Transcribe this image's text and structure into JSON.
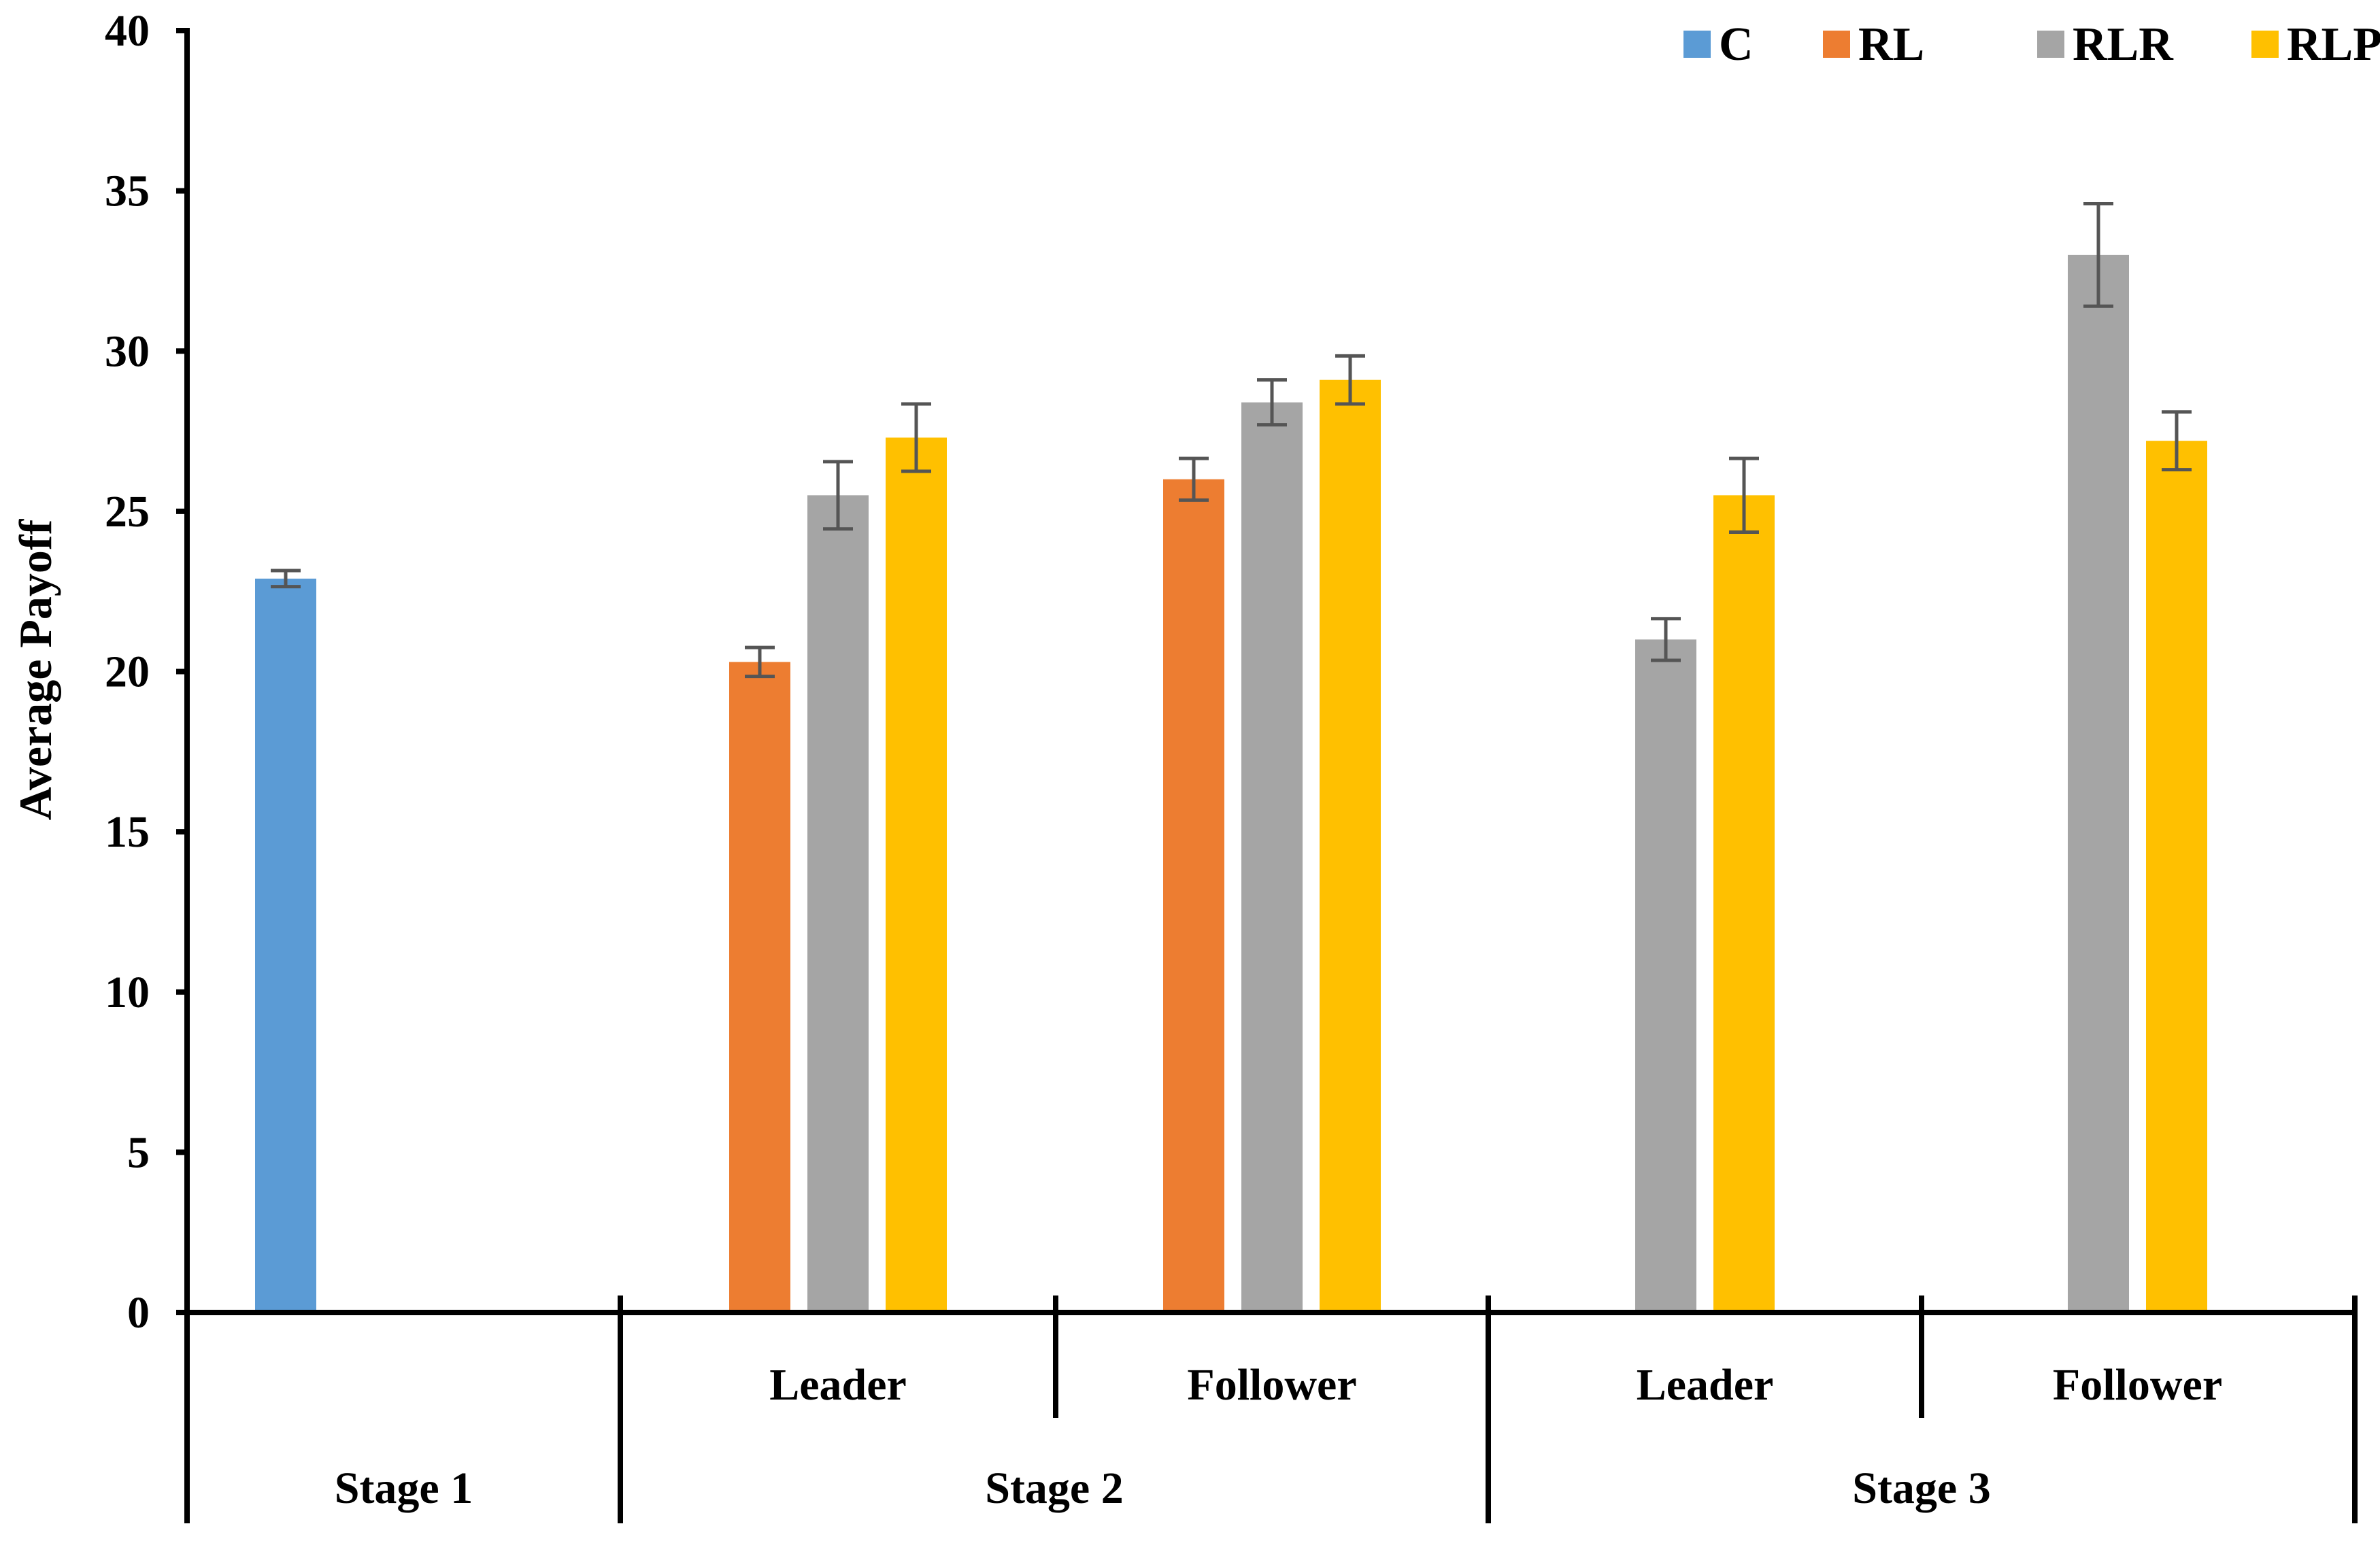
{
  "chart_data": {
    "type": "bar",
    "title": "",
    "ylabel": "Average Payoff",
    "xlabel": "",
    "ylim": [
      0,
      40
    ],
    "yticks": [
      0,
      5,
      10,
      15,
      20,
      25,
      30,
      35,
      40
    ],
    "grid": false,
    "legend_position": "top-right",
    "legend": [
      {
        "key": "C",
        "label": "C",
        "color": "#5B9BD5"
      },
      {
        "key": "RL",
        "label": "RL",
        "color": "#ED7D31"
      },
      {
        "key": "RLR",
        "label": "RLR",
        "color": "#A5A5A5"
      },
      {
        "key": "RLP",
        "label": "RLP",
        "color": "#FFC000"
      }
    ],
    "groups": [
      {
        "id": "g1",
        "label": "",
        "bars": [
          {
            "series": "C",
            "value": 22.9,
            "error": 0.25
          }
        ]
      },
      {
        "id": "g2",
        "label": "Leader",
        "bars": [
          {
            "series": "RL",
            "value": 20.3,
            "error": 0.45
          },
          {
            "series": "RLR",
            "value": 25.5,
            "error": 1.05
          },
          {
            "series": "RLP",
            "value": 27.3,
            "error": 1.05
          }
        ]
      },
      {
        "id": "g3",
        "label": "Follower",
        "bars": [
          {
            "series": "RL",
            "value": 26.0,
            "error": 0.65
          },
          {
            "series": "RLR",
            "value": 28.4,
            "error": 0.7
          },
          {
            "series": "RLP",
            "value": 29.1,
            "error": 0.75
          }
        ]
      },
      {
        "id": "g4",
        "label": "Leader",
        "bars": [
          {
            "series": "RLR",
            "value": 21.0,
            "error": 0.65
          },
          {
            "series": "RLP",
            "value": 25.5,
            "error": 1.15
          }
        ]
      },
      {
        "id": "g5",
        "label": "Follower",
        "bars": [
          {
            "series": "RLR",
            "value": 33.0,
            "error": 1.6
          },
          {
            "series": "RLP",
            "value": 27.2,
            "error": 0.9
          }
        ]
      }
    ],
    "stages": [
      {
        "label": "Stage 1",
        "groups": [
          "g1"
        ]
      },
      {
        "label": "Stage 2",
        "groups": [
          "g2",
          "g3"
        ]
      },
      {
        "label": "Stage 3",
        "groups": [
          "g4",
          "g5"
        ]
      }
    ]
  }
}
